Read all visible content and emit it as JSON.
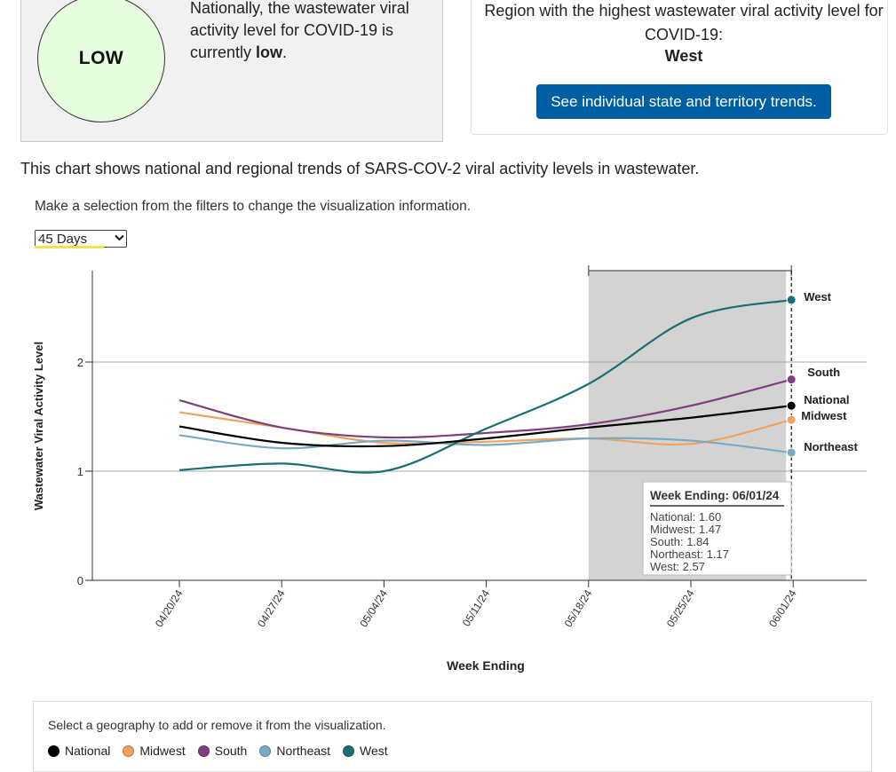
{
  "summary": {
    "level": "LOW",
    "national_text_prefix": "Nationally, the wastewater viral activity level for COVID-19 is currently ",
    "national_text_bold": "low",
    "national_text_suffix": ".",
    "region_text": "Region with the highest wastewater viral activity level for COVID-19:",
    "region_name": "West",
    "state_button_label": "See individual state and territory trends."
  },
  "intro_text": "This chart shows national and regional trends of SARS-COV-2 viral activity levels in wastewater.",
  "filter": {
    "instructions": "Make a selection from the filters to change the visualization information.",
    "selected": "45 Days"
  },
  "colors": {
    "National": "#000000",
    "Midwest": "#f0a35e",
    "South": "#7e3f7c",
    "Northeast": "#7aaac2",
    "West": "#1b6e72",
    "highlight": "#d3d3d3",
    "gauge_fill": "#e6fde0",
    "button": "#005ea2"
  },
  "chart_data": {
    "type": "line",
    "xlabel": "Week Ending",
    "ylabel": "Wastewater Viral Activity Level",
    "ylim": [
      0,
      2.8
    ],
    "yticks": [
      0,
      1,
      2
    ],
    "x": [
      "04/20/24",
      "04/27/24",
      "05/04/24",
      "05/11/24",
      "05/18/24",
      "05/25/24",
      "06/01/24"
    ],
    "highlight_range": [
      "05/18/24",
      "06/01/24"
    ],
    "series": [
      {
        "name": "National",
        "values": [
          1.41,
          1.26,
          1.23,
          1.3,
          1.4,
          1.49,
          1.6
        ]
      },
      {
        "name": "Midwest",
        "values": [
          1.54,
          1.4,
          1.26,
          1.27,
          1.3,
          1.25,
          1.47
        ]
      },
      {
        "name": "South",
        "values": [
          1.65,
          1.4,
          1.31,
          1.35,
          1.43,
          1.6,
          1.84
        ]
      },
      {
        "name": "Northeast",
        "values": [
          1.33,
          1.21,
          1.28,
          1.24,
          1.3,
          1.28,
          1.17
        ]
      },
      {
        "name": "West",
        "values": [
          1.01,
          1.07,
          1.0,
          1.39,
          1.8,
          2.4,
          2.57
        ]
      }
    ],
    "tooltip": {
      "title": "Week Ending: 06/01/24",
      "lines": [
        "National: 1.60",
        "Midwest: 1.47",
        "South: 1.84",
        "Northeast: 1.17",
        "West: 2.57"
      ]
    }
  },
  "legend": {
    "title": "Select a geography to add or remove it from the visualization.",
    "items": [
      "National",
      "Midwest",
      "South",
      "Northeast",
      "West"
    ]
  }
}
